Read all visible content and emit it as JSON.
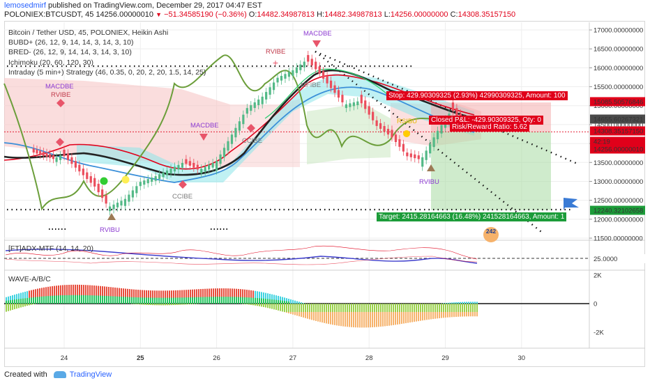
{
  "header": {
    "user": "lemosedmirf",
    "published": " published on TradingView.com, December 29, 2017 04:47 EST",
    "symbol_line": "POLONIEX:BTCUSDT, 45",
    "last": "14256.00000010",
    "change": "−51.34585190 (−0.36%)",
    "open_label": "O:",
    "open": "14482.34987813",
    "high_label": "H:",
    "high": "14482.34987813",
    "low_label": "L:",
    "low": "14256.00000000",
    "close_label": "C:",
    "close": "14308.35157150"
  },
  "legend": [
    "Bitcoin / Tether USD, 45, POLONIEX, Heikin Ashi",
    "BUBD+ (26, 12, 9, 14, 14, 3, 14, 3, 10)",
    "BRED- (26, 12, 9, 14, 14, 3, 14, 3, 10)",
    "Ichimoku (20, 60, 120, 30)",
    "Intraday (5 min+) Strategy (46, 0.35, 0, 20, 2, 20, 1.5, 14, 25)"
  ],
  "panes": {
    "adx_title": "[FT]ADX-MTF (14, 14, 20)",
    "wave_title": "WAVE-A/B/C"
  },
  "price_axis": {
    "ticks": [
      "17000.00000000",
      "16500.00000000",
      "16000.00000000",
      "15500.00000000",
      "15000.00000000",
      "14500.00000000",
      "14000.00000000",
      "13500.00000000",
      "13000.00000000",
      "12500.00000000",
      "12000.00000000",
      "11500.00000000"
    ],
    "markers": [
      {
        "label": "15085.50576846",
        "color": "#e0001a"
      },
      {
        "label": "14655.60267321",
        "color": "#4a4a4a"
      },
      {
        "label": "14308.35157150",
        "color": "#e0001a"
      },
      {
        "label": "42:19",
        "color": "#e0001a"
      },
      {
        "label": "14256.00000010",
        "color": "#e0001a"
      },
      {
        "label": "12240.32102658",
        "color": "#1c9c39"
      }
    ],
    "adx_tick": "25.0000",
    "wave_ticks": [
      "2K",
      "0",
      "-2K"
    ]
  },
  "time_axis": [
    "24",
    "25",
    "26",
    "27",
    "28",
    "29",
    "30"
  ],
  "signals": [
    {
      "text": "MACDBE",
      "color": "#8c3bd1"
    },
    {
      "text": "RVIBE",
      "color": "#c03a4a"
    },
    {
      "text": "MACDBE",
      "color": "#8c3bd1"
    },
    {
      "text": "RVIBE",
      "color": "#c03a4a"
    },
    {
      "text": "MACDBE",
      "color": "#8c3bd1"
    },
    {
      "text": "MFIBE",
      "color": "#7a7a7a"
    },
    {
      "text": "CCIBE",
      "color": "#7a7a7a"
    },
    {
      "text": "CCIBE",
      "color": "#7a7a7a"
    },
    {
      "text": "RVIBU",
      "color": "#8c3bd1"
    },
    {
      "text": "RVIBU",
      "color": "#8c3bd1"
    },
    {
      "text": "RSIBU",
      "color": "#e6b800"
    }
  ],
  "position": {
    "stop": "Stop: 429.90309325 (2.93%) 42990309325, Amount: 100",
    "closed": "Closed P&L: -429.90309325, Qty: 0",
    "ratio": "Risk/Reward Ratio: 5.62",
    "target": "Target: 2415.28164663 (16.48%) 241528164663, Amount: 1"
  },
  "misc": {
    "badge": "242"
  },
  "footer": {
    "created": "Created with",
    "brand": "TradingView"
  },
  "chart_data": {
    "type": "line",
    "title": "Bitcoin / Tether USD, 45, POLONIEX, Heikin Ashi",
    "xlabel": "",
    "ylabel": "",
    "x_ticks": [
      "24",
      "25",
      "26",
      "27",
      "28",
      "29",
      "30"
    ],
    "ylim": [
      11500,
      17000
    ],
    "series": [
      {
        "name": "Bitcoin / Tether USD",
        "x": [
          23.6,
          23.9,
          24.0,
          24.2,
          24.4,
          24.6,
          24.8,
          25.0,
          25.2,
          25.4,
          25.6,
          25.8,
          26.0,
          26.2,
          26.4,
          26.6,
          26.8,
          27.0,
          27.2,
          27.3,
          27.5,
          27.7,
          27.9,
          28.1,
          28.3,
          28.5,
          28.7,
          28.9,
          29.1,
          29.3
        ],
        "close": [
          13800,
          13600,
          13700,
          13300,
          12900,
          12300,
          12500,
          12950,
          13100,
          13300,
          13500,
          13300,
          13500,
          14200,
          14900,
          15200,
          15700,
          15900,
          16200,
          16000,
          15500,
          15000,
          15100,
          14500,
          14200,
          13700,
          13600,
          14300,
          14900,
          14308
        ]
      }
    ],
    "levels": {
      "stop": 15085.50576846,
      "current": 14308.3515715,
      "target": 12240.32102658
    },
    "adx": {
      "reference": 25
    },
    "wave": {
      "ylim": [
        -2000,
        2000
      ]
    }
  }
}
